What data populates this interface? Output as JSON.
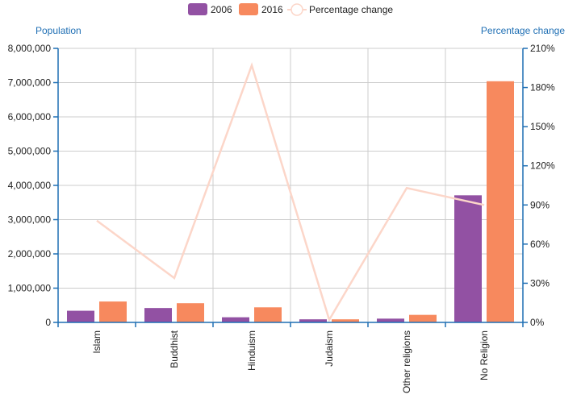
{
  "chart_data": {
    "type": "bar",
    "categories": [
      "Islam",
      "Buddhist",
      "Hinduism",
      "Judaism",
      "Other religions",
      "No Religion"
    ],
    "series": [
      {
        "name": "2006",
        "type": "bar",
        "axis": "left",
        "color": "#9251a3",
        "values": [
          340000,
          420000,
          150000,
          90000,
          110000,
          3710000
        ]
      },
      {
        "name": "2016",
        "type": "bar",
        "axis": "left",
        "color": "#f7895e",
        "values": [
          610000,
          560000,
          440000,
          90000,
          220000,
          7040000
        ]
      }
    ],
    "line_series": {
      "name": "Percentage change",
      "type": "line",
      "axis": "right",
      "color": "#fcd6c9",
      "values": [
        78,
        34,
        197,
        2,
        103,
        90
      ]
    },
    "y_left": {
      "label": "Population",
      "ylim": [
        0,
        8000000
      ],
      "ticks": [
        "0",
        "1,000,000",
        "2,000,000",
        "3,000,000",
        "4,000,000",
        "5,000,000",
        "6,000,000",
        "7,000,000",
        "8,000,000"
      ]
    },
    "y_right": {
      "label": "Percentage change",
      "ylim": [
        0,
        210
      ],
      "ticks": [
        "0%",
        "30%",
        "60%",
        "90%",
        "120%",
        "150%",
        "180%",
        "210%"
      ]
    },
    "grid": true,
    "legend_position": "top-center"
  }
}
